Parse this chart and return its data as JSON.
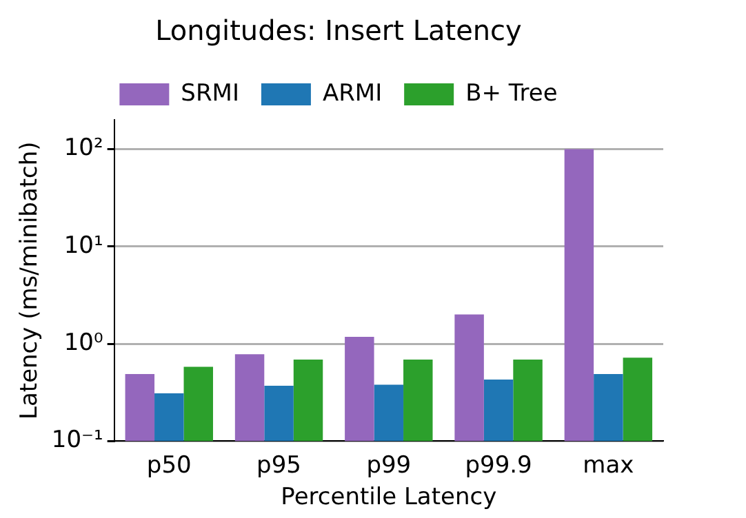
{
  "chart_data": {
    "type": "bar",
    "title": "Longitudes: Insert Latency",
    "xlabel": "Percentile Latency",
    "ylabel": "Latency (ms/minibatch)",
    "categories": [
      "p50",
      "p95",
      "p99",
      "p99.9",
      "max"
    ],
    "series": [
      {
        "name": "SRMI",
        "color": "#9467bd",
        "values": [
          0.49,
          0.78,
          1.18,
          2.0,
          100
        ]
      },
      {
        "name": "ARMI",
        "color": "#1f77b4",
        "values": [
          0.31,
          0.37,
          0.38,
          0.43,
          0.49
        ]
      },
      {
        "name": "B+ Tree",
        "color": "#2ca02c",
        "values": [
          0.58,
          0.69,
          0.69,
          0.69,
          0.72
        ]
      }
    ],
    "log": "y",
    "ylim": [
      0.1,
      200
    ],
    "yticks": [
      {
        "value": 0.1,
        "label": "10⁻¹"
      },
      {
        "value": 1,
        "label": "10⁰"
      },
      {
        "value": 10,
        "label": "10¹"
      },
      {
        "value": 100,
        "label": "10²"
      }
    ],
    "grid": "y",
    "legend": "top"
  }
}
